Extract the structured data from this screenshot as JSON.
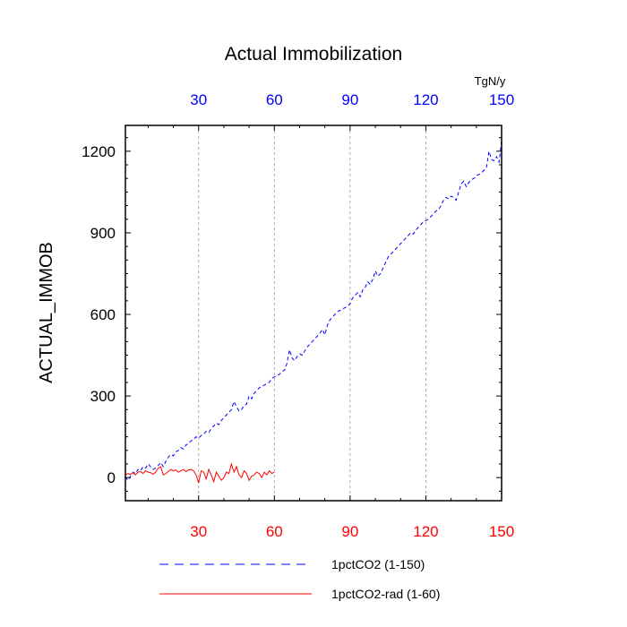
{
  "chart_data": {
    "type": "line",
    "title": "Actual Immobilization",
    "ylabel": "ACTUAL_IMMOB",
    "units": "TgN/y",
    "xlim": [
      1,
      150
    ],
    "ylim": [
      -85,
      1295
    ],
    "x_ticks": [
      30,
      60,
      90,
      120,
      150
    ],
    "y_ticks": [
      0,
      300,
      600,
      900,
      1200
    ],
    "grid": "vertical dashed at x ticks",
    "legend_position": "bottom",
    "top_axis_color": "#0000ff",
    "bottom_axis_color": "#ff0000",
    "series": [
      {
        "name": "1pctCO2 (1-150)",
        "color": "#0000ff",
        "dash": "dashed",
        "x_start": 1,
        "values": [
          3,
          -10,
          5,
          20,
          15,
          30,
          25,
          40,
          35,
          50,
          40,
          30,
          35,
          45,
          55,
          40,
          60,
          75,
          85,
          80,
          95,
          100,
          110,
          105,
          120,
          125,
          135,
          140,
          150,
          145,
          155,
          160,
          170,
          165,
          180,
          190,
          200,
          195,
          210,
          220,
          230,
          240,
          250,
          280,
          260,
          245,
          250,
          265,
          270,
          300,
          290,
          310,
          320,
          330,
          335,
          340,
          345,
          350,
          365,
          370,
          375,
          380,
          390,
          395,
          420,
          470,
          440,
          430,
          445,
          455,
          450,
          465,
          480,
          490,
          500,
          510,
          520,
          530,
          545,
          525,
          560,
          580,
          590,
          600,
          610,
          615,
          620,
          625,
          630,
          640,
          660,
          670,
          680,
          665,
          690,
          700,
          720,
          710,
          730,
          760,
          740,
          750,
          770,
          790,
          810,
          820,
          830,
          840,
          850,
          860,
          870,
          880,
          890,
          900,
          895,
          910,
          920,
          930,
          940,
          945,
          950,
          960,
          970,
          980,
          985,
          1000,
          1020,
          1030,
          1025,
          1035,
          1030,
          1020,
          1050,
          1080,
          1090,
          1070,
          1085,
          1095,
          1100,
          1110,
          1115,
          1120,
          1130,
          1140,
          1200,
          1170,
          1165,
          1180,
          1160,
          1240
        ]
      },
      {
        "name": "1pctCO2-rad (1-60)",
        "color": "#ff0000",
        "dash": "solid",
        "x_start": 1,
        "values": [
          10,
          15,
          12,
          18,
          10,
          20,
          22,
          15,
          25,
          20,
          18,
          12,
          20,
          35,
          40,
          10,
          15,
          22,
          30,
          25,
          28,
          20,
          25,
          30,
          22,
          28,
          30,
          25,
          10,
          -20,
          25,
          20,
          -5,
          30,
          10,
          -15,
          20,
          5,
          -10,
          0,
          20,
          15,
          50,
          20,
          40,
          10,
          0,
          25,
          15,
          -10,
          5,
          10,
          20,
          15,
          0,
          20,
          10,
          25,
          15,
          20
        ]
      }
    ]
  }
}
